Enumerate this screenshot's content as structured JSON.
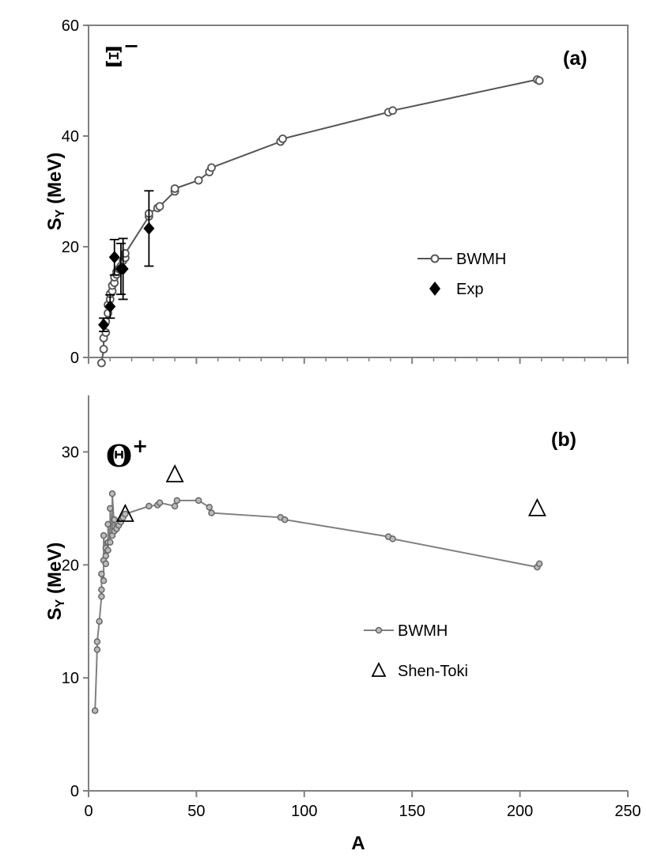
{
  "chart_data": [
    {
      "type": "line",
      "panel_label": "(a)",
      "particle": {
        "symbol": "Ξ",
        "charge": "−"
      },
      "ylabel": {
        "main": "S",
        "sub": "Y",
        "unit": " (MeV)"
      },
      "xlabel": "",
      "xlim": [
        0,
        250
      ],
      "ylim": [
        0,
        60
      ],
      "yticks": [
        0,
        20,
        40,
        60
      ],
      "ytick_labels": [
        "0",
        "20",
        "40",
        "60"
      ],
      "xticks": [
        0,
        50,
        100,
        150,
        200,
        250
      ],
      "xminor": [
        10,
        20,
        30,
        40,
        60,
        70,
        80,
        90,
        110,
        120,
        130,
        140,
        160,
        170,
        180,
        190,
        210,
        220,
        230,
        240
      ],
      "legend_position": "center-right",
      "series": [
        {
          "name": "BWMH",
          "kind": "line-open-circle",
          "color": "#555555",
          "x": [
            6,
            7,
            7,
            8,
            8,
            9,
            9,
            10,
            10,
            11,
            11,
            12,
            12,
            13,
            13,
            14,
            15,
            16,
            17,
            17,
            28,
            28,
            32,
            33,
            40,
            40,
            51,
            56,
            57,
            89,
            90,
            139,
            141,
            208,
            209
          ],
          "y": [
            -1,
            1.5,
            3.5,
            4.5,
            6.5,
            8,
            9.5,
            10.5,
            11.5,
            12,
            13,
            13.5,
            14.5,
            15,
            15.5,
            16,
            16.5,
            17.5,
            18,
            18.8,
            25.5,
            26,
            27,
            27.3,
            30,
            30.5,
            32,
            33.5,
            34.3,
            39,
            39.5,
            44.3,
            44.6,
            50.2,
            50
          ]
        },
        {
          "name": "Exp",
          "kind": "diamond-errorbar",
          "color": "#000000",
          "x": [
            7,
            10,
            12,
            15,
            16,
            28
          ],
          "y": [
            5.9,
            9.2,
            18.1,
            16.0,
            16.0,
            23.3
          ],
          "err": [
            1.2,
            2.1,
            3.2,
            4.6,
            5.5,
            6.8
          ]
        }
      ]
    },
    {
      "type": "line",
      "panel_label": "(b)",
      "particle": {
        "symbol": "Θ",
        "charge": "+"
      },
      "ylabel": {
        "main": "S",
        "sub": "Y",
        "unit": " (MeV)"
      },
      "xlabel": "A",
      "xlim": [
        0,
        250
      ],
      "ylim": [
        0,
        35
      ],
      "yticks": [
        0,
        10,
        20,
        30
      ],
      "ytick_labels": [
        "0",
        "10",
        "20",
        "30"
      ],
      "xticks": [
        0,
        50,
        100,
        150,
        200,
        250
      ],
      "xtick_labels": [
        "0",
        "50",
        "100",
        "150",
        "200",
        "250"
      ],
      "legend_position": "center",
      "series": [
        {
          "name": "BWMH",
          "kind": "line-small-circle",
          "color": "#808080",
          "x": [
            3,
            4,
            4,
            5,
            6,
            6,
            6,
            7,
            7,
            7,
            8,
            8,
            8,
            9,
            9,
            9,
            10,
            10,
            11,
            11,
            12,
            12,
            13,
            14,
            15,
            16,
            17,
            28,
            32,
            33,
            40,
            41,
            51,
            56,
            57,
            89,
            91,
            139,
            141,
            208,
            209
          ],
          "y": [
            7.1,
            12.5,
            13.2,
            15,
            17.2,
            17.8,
            19.2,
            18.6,
            20.4,
            22.6,
            20.1,
            20.8,
            21.5,
            21.3,
            22,
            23.6,
            22,
            25,
            22.6,
            26.3,
            23,
            24,
            23.2,
            23.5,
            23.8,
            24.2,
            24.5,
            25.2,
            25.3,
            25.5,
            25.2,
            25.7,
            25.7,
            25.1,
            24.6,
            24.2,
            24.0,
            22.5,
            22.3,
            19.8,
            20.1
          ]
        },
        {
          "name": "Shen-Toki",
          "kind": "open-triangle",
          "color": "#000000",
          "x": [
            17,
            40,
            208
          ],
          "y": [
            24.5,
            28.0,
            25.0
          ]
        }
      ]
    }
  ]
}
